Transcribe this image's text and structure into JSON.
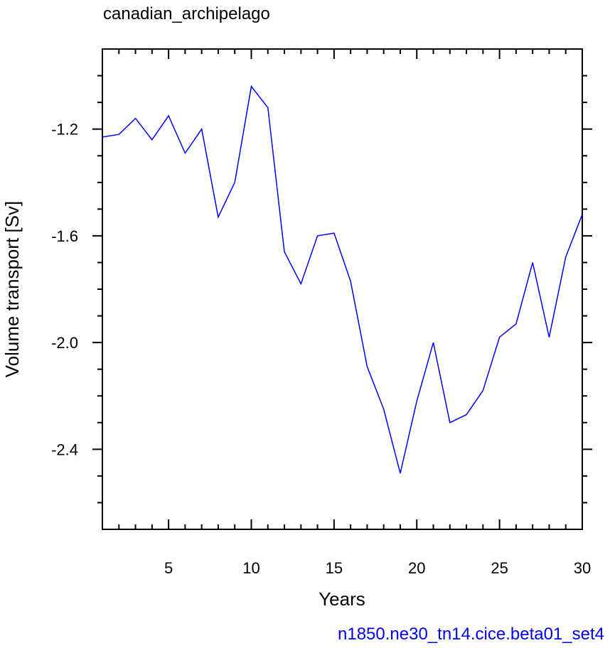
{
  "colors": {
    "series_line": "#0000ff",
    "footer_text": "#0000ff",
    "axes": "#000000",
    "background": "#ffffff"
  },
  "footer": {
    "case_name": "n1850.ne30_tn14.cice.beta01_set4"
  },
  "chart_data": {
    "type": "line",
    "title": "canadian_archipelago",
    "xlabel": "Years",
    "ylabel": "Volume transport [Sv]",
    "xlim": [
      1,
      30
    ],
    "ylim": [
      -2.7,
      -0.9
    ],
    "xticks": [
      5,
      10,
      15,
      20,
      25,
      30
    ],
    "xtick_labels": [
      "5",
      "10",
      "15",
      "20",
      "25",
      "30"
    ],
    "yticks": [
      -1.2,
      -1.6,
      -2.0,
      -2.4
    ],
    "ytick_labels": [
      "-1.2",
      "-1.6",
      "-2.0",
      "-2.4"
    ],
    "x_minor_step": 1,
    "y_minor_step": 0.1,
    "grid": false,
    "legend": "none",
    "series": [
      {
        "x": [
          1,
          2,
          3,
          4,
          5,
          6,
          7,
          8,
          9,
          10,
          11,
          12,
          13,
          14,
          15,
          16,
          17,
          18,
          19,
          20,
          21,
          22,
          23,
          24,
          25,
          26,
          27,
          28,
          29,
          30
        ],
        "y": [
          -1.23,
          -1.22,
          -1.16,
          -1.24,
          -1.15,
          -1.29,
          -1.2,
          -1.53,
          -1.4,
          -1.04,
          -1.12,
          -1.66,
          -1.78,
          -1.6,
          -1.59,
          -1.77,
          -2.09,
          -2.25,
          -2.49,
          -2.22,
          -2.0,
          -2.3,
          -2.27,
          -2.18,
          -1.98,
          -1.93,
          -1.7,
          -1.98,
          -1.68,
          -1.52
        ]
      }
    ]
  }
}
